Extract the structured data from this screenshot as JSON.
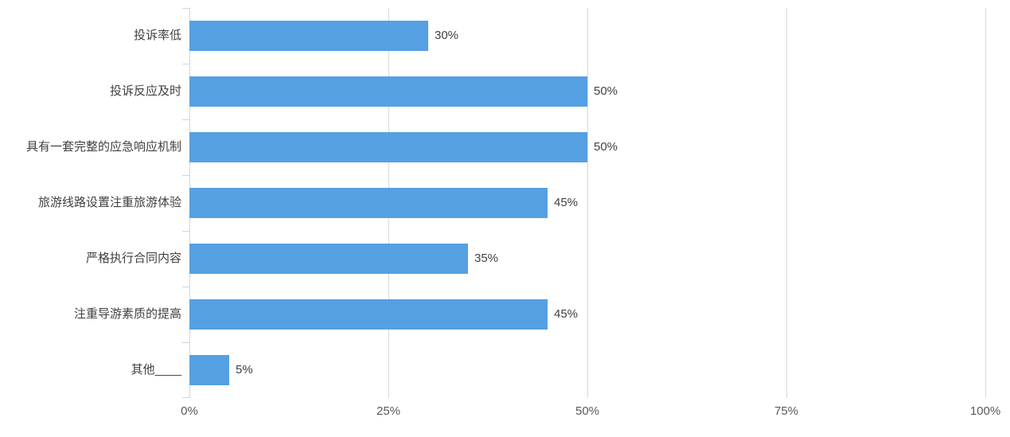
{
  "chart_data": {
    "type": "bar",
    "orientation": "horizontal",
    "title": "",
    "categories": [
      "投诉率低",
      "投诉反应及时",
      "具有一套完整的应急响应机制",
      "旅游线路设置注重旅游体验",
      "严格执行合同内容",
      "注重导游素质的提高",
      "其他____"
    ],
    "values": [
      30,
      50,
      50,
      45,
      35,
      45,
      5
    ],
    "value_labels": [
      "30%",
      "50%",
      "50%",
      "45%",
      "35%",
      "45%",
      "5%"
    ],
    "x_tick_labels": [
      "0%",
      "25%",
      "50%",
      "75%",
      "100%"
    ],
    "x_tick_values": [
      0,
      25,
      50,
      75,
      100
    ],
    "xlim": [
      0,
      100
    ],
    "grid": "vertical",
    "legend": "none"
  },
  "colors": {
    "bar": "#55A0E2",
    "gridline": "#D9D9D9",
    "axis": "#CFD6DE",
    "category_text": "#404040",
    "value_text": "#404040",
    "tick_text": "#595959",
    "background": "#FFFFFF"
  }
}
